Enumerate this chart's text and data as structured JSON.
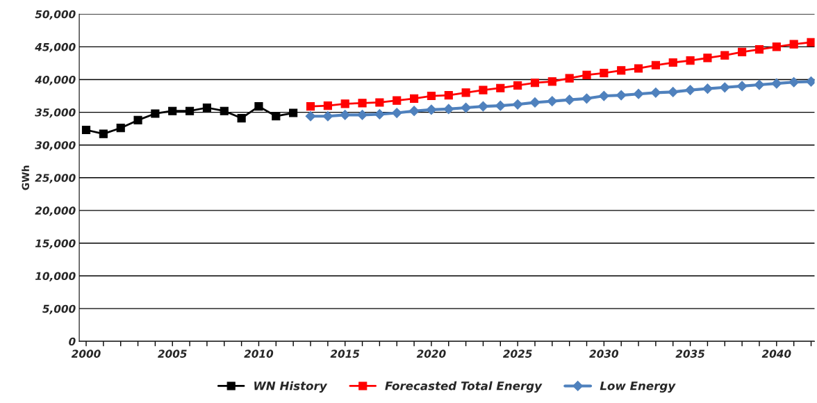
{
  "chart_data": {
    "type": "line",
    "ylabel": "GWh",
    "xlim": [
      1999.6,
      2042.2
    ],
    "xticks": [
      2000,
      {
        "value": 2001,
        "label": null
      },
      {
        "value": 2002,
        "label": null
      },
      {
        "value": 2003,
        "label": null
      },
      {
        "value": 2004,
        "label": null
      },
      2005,
      {
        "value": 2006,
        "label": null
      },
      {
        "value": 2007,
        "label": null
      },
      {
        "value": 2008,
        "label": null
      },
      {
        "value": 2009,
        "label": null
      },
      2010,
      {
        "value": 2011,
        "label": null
      },
      {
        "value": 2012,
        "label": null
      },
      {
        "value": 2013,
        "label": null
      },
      {
        "value": 2014,
        "label": null
      },
      2015,
      {
        "value": 2016,
        "label": null
      },
      {
        "value": 2017,
        "label": null
      },
      {
        "value": 2018,
        "label": null
      },
      {
        "value": 2019,
        "label": null
      },
      2020,
      {
        "value": 2021,
        "label": null
      },
      {
        "value": 2022,
        "label": null
      },
      {
        "value": 2023,
        "label": null
      },
      {
        "value": 2024,
        "label": null
      },
      2025,
      {
        "value": 2026,
        "label": null
      },
      {
        "value": 2027,
        "label": null
      },
      {
        "value": 2028,
        "label": null
      },
      {
        "value": 2029,
        "label": null
      },
      2030,
      {
        "value": 2031,
        "label": null
      },
      {
        "value": 2032,
        "label": null
      },
      {
        "value": 2033,
        "label": null
      },
      {
        "value": 2034,
        "label": null
      },
      2035,
      {
        "value": 2036,
        "label": null
      },
      {
        "value": 2037,
        "label": null
      },
      {
        "value": 2038,
        "label": null
      },
      {
        "value": 2039,
        "label": null
      },
      2040,
      {
        "value": 2041,
        "label": null
      },
      {
        "value": 2042,
        "label": null
      }
    ],
    "ylim": [
      0,
      50000
    ],
    "yticks": [
      {
        "value": 0,
        "label": "0"
      },
      {
        "value": 5000,
        "label": "5,000"
      },
      {
        "value": 10000,
        "label": "10,000"
      },
      {
        "value": 15000,
        "label": "15,000"
      },
      {
        "value": 20000,
        "label": "20,000"
      },
      {
        "value": 25000,
        "label": "25,000"
      },
      {
        "value": 30000,
        "label": "30,000"
      },
      {
        "value": 35000,
        "label": "35,000"
      },
      {
        "value": 40000,
        "label": "40,000"
      },
      {
        "value": 45000,
        "label": "45,000"
      },
      {
        "value": 50000,
        "label": "50,000"
      }
    ],
    "grid": "y",
    "legend": "bottom",
    "series": [
      {
        "name": "WN History",
        "color": "#000000",
        "marker": "square",
        "x": [
          2000,
          2001,
          2002,
          2003,
          2004,
          2005,
          2006,
          2007,
          2008,
          2009,
          2010,
          2011,
          2012
        ],
        "values": [
          32300,
          31700,
          32600,
          33800,
          34800,
          35200,
          35200,
          35700,
          35200,
          34100,
          35900,
          34400,
          34900
        ]
      },
      {
        "name": "Forecasted Total Energy",
        "color": "#ff0000",
        "marker": "square",
        "x": [
          2013,
          2014,
          2015,
          2016,
          2017,
          2018,
          2019,
          2020,
          2021,
          2022,
          2023,
          2024,
          2025,
          2026,
          2027,
          2028,
          2029,
          2030,
          2031,
          2032,
          2033,
          2034,
          2035,
          2036,
          2037,
          2038,
          2039,
          2040,
          2041,
          2042
        ],
        "values": [
          35900,
          36000,
          36300,
          36400,
          36500,
          36800,
          37100,
          37500,
          37600,
          38000,
          38400,
          38700,
          39100,
          39500,
          39700,
          40200,
          40700,
          41000,
          41400,
          41700,
          42200,
          42600,
          42900,
          43300,
          43700,
          44200,
          44600,
          45000,
          45400,
          45700
        ]
      },
      {
        "name": "Low Energy",
        "color": "#4f81bd",
        "marker": "diamond",
        "x": [
          2013,
          2014,
          2015,
          2016,
          2017,
          2018,
          2019,
          2020,
          2021,
          2022,
          2023,
          2024,
          2025,
          2026,
          2027,
          2028,
          2029,
          2030,
          2031,
          2032,
          2033,
          2034,
          2035,
          2036,
          2037,
          2038,
          2039,
          2040,
          2041,
          2042
        ],
        "values": [
          34400,
          34400,
          34600,
          34600,
          34700,
          34900,
          35200,
          35400,
          35500,
          35700,
          35900,
          36000,
          36200,
          36500,
          36700,
          36900,
          37100,
          37500,
          37600,
          37800,
          38000,
          38100,
          38400,
          38600,
          38800,
          39000,
          39200,
          39400,
          39600,
          39700
        ]
      }
    ]
  }
}
